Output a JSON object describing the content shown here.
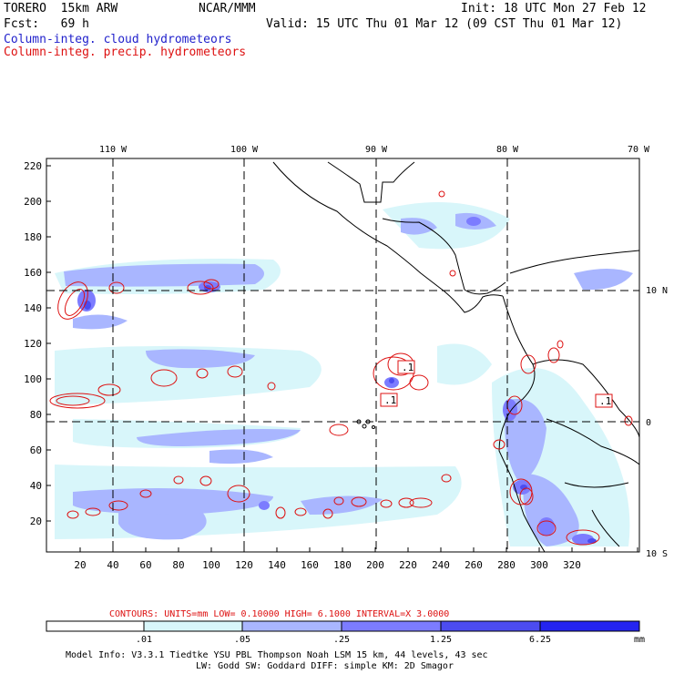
{
  "header": {
    "model": "TORERO  15km ARW",
    "org": "NCAR/MMM",
    "init": "Init: 18 UTC Mon 27 Feb 12",
    "fcst": "Fcst:   69 h",
    "valid": "Valid: 15 UTC Thu 01 Mar 12 (09 CST Thu 01 Mar 12)",
    "legend_cloud": "Column-integ. cloud hydrometeors",
    "legend_precip": "Column-integ. precip. hydrometeors"
  },
  "map": {
    "lon_labels": [
      "110 W",
      "100 W",
      "90 W",
      "80 W",
      "70 W"
    ],
    "lat_labels": [
      "10 N",
      "0",
      "10 S"
    ],
    "x_ticks": [
      "20",
      "40",
      "60",
      "80",
      "100",
      "120",
      "140",
      "160",
      "180",
      "200",
      "220",
      "240",
      "260",
      "280",
      "300",
      "320"
    ],
    "y_ticks": [
      "220",
      "200",
      "180",
      "160",
      "140",
      "120",
      "100",
      "80",
      "60",
      "40",
      "20"
    ],
    "contour_labels": [
      ".1",
      ".1",
      ".1"
    ]
  },
  "contour_info": {
    "line": "CONTOURS:  UNITS=mm  LOW= 0.10000     HIGH=  6.1000     INTERVAL=X  3.0000"
  },
  "colorbar": {
    "labels": [
      ".01",
      ".05",
      ".25",
      "1.25",
      "6.25"
    ],
    "units": "mm",
    "colors": [
      "#ffffff",
      "#d8f6fa",
      "#a9b6ff",
      "#7c7cff",
      "#4c4cf0",
      "#2424f0"
    ]
  },
  "footer": {
    "line1": "Model Info: V3.3.1   Tiedtke YSU PBL  Thompson    Noah LSM  15 km,   44 levels,   43 sec",
    "line2": "LW: Godd SW: Goddard DIFF: simple KM: 2D Smagor"
  }
}
